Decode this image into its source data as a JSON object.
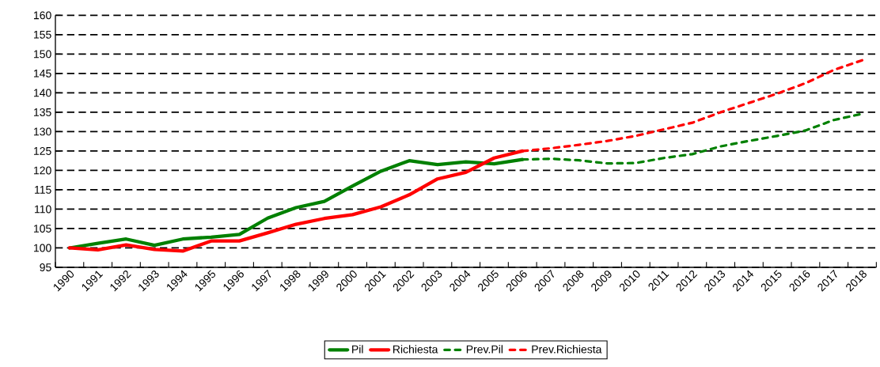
{
  "chart_data": {
    "type": "line",
    "categories": [
      "1990",
      "1991",
      "1992",
      "1993",
      "1994",
      "1995",
      "1996",
      "1997",
      "1998",
      "1999",
      "2000",
      "2001",
      "2002",
      "2003",
      "2004",
      "2005",
      "2006",
      "2007",
      "2008",
      "2009",
      "2010",
      "2011",
      "2012",
      "2013",
      "2014",
      "2015",
      "2016",
      "2017",
      "2018"
    ],
    "series": [
      {
        "name": "Pil",
        "color": "#008000",
        "line_style": "solid",
        "values": [
          100,
          101.2,
          102.3,
          100.7,
          102.3,
          102.8,
          103.5,
          107.7,
          110.4,
          112,
          116,
          119.8,
          122.5,
          121.5,
          122.2,
          121.7,
          122.8,
          null,
          null,
          null,
          null,
          null,
          null,
          null,
          null,
          null,
          null,
          null,
          null
        ]
      },
      {
        "name": "Richiesta",
        "color": "#ff0000",
        "line_style": "solid",
        "values": [
          100,
          99.5,
          100.8,
          99.6,
          99.2,
          101.8,
          101.8,
          103.9,
          106.1,
          107.6,
          108.6,
          110.6,
          113.7,
          117.8,
          119.5,
          123.2,
          125,
          null,
          null,
          null,
          null,
          null,
          null,
          null,
          null,
          null,
          null,
          null,
          null
        ]
      },
      {
        "name": "Prev.Pil",
        "color": "#008000",
        "line_style": "dashed",
        "values": [
          null,
          null,
          null,
          null,
          null,
          null,
          null,
          null,
          null,
          null,
          null,
          null,
          null,
          null,
          null,
          null,
          122.8,
          123,
          122.6,
          121.8,
          121.9,
          123.2,
          124.2,
          126.2,
          127.6,
          128.9,
          130.3,
          133,
          134.6
        ]
      },
      {
        "name": "Prev.Richiesta",
        "color": "#ff0000",
        "line_style": "dashed",
        "values": [
          null,
          null,
          null,
          null,
          null,
          null,
          null,
          null,
          null,
          null,
          null,
          null,
          null,
          null,
          null,
          null,
          125,
          125.7,
          126.6,
          127.6,
          128.9,
          130.6,
          132.3,
          135,
          137.4,
          139.8,
          142.5,
          145.9,
          148.4
        ]
      }
    ],
    "ylim": [
      95,
      160
    ],
    "yticks": [
      95,
      100,
      105,
      110,
      115,
      120,
      125,
      130,
      135,
      140,
      145,
      150,
      155,
      160
    ],
    "grid": "y",
    "legend": "bottom"
  }
}
